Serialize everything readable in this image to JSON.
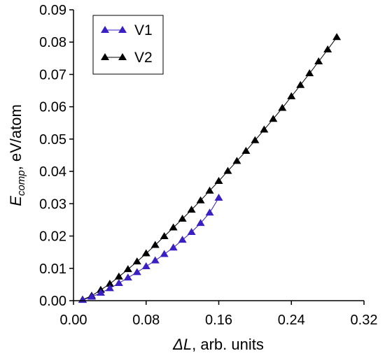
{
  "chart_data": {
    "type": "line",
    "xlabel": {
      "main": "ΔL",
      "rest": ", arb. units"
    },
    "ylabel": {
      "main": "E",
      "sub": "comp",
      "rest": ", eV/atom"
    },
    "xlim": [
      0,
      0.32
    ],
    "ylim": [
      0,
      0.09
    ],
    "xticks": [
      0.0,
      0.08,
      0.16,
      0.24,
      0.32
    ],
    "xtick_labels": [
      "0.00",
      "0.08",
      "0.16",
      "0.24",
      "0.32"
    ],
    "yticks": [
      0.0,
      0.01,
      0.02,
      0.03,
      0.04,
      0.05,
      0.06,
      0.07,
      0.08,
      0.09
    ],
    "ytick_labels": [
      "0.00",
      "0.01",
      "0.02",
      "0.03",
      "0.04",
      "0.05",
      "0.06",
      "0.07",
      "0.08",
      "0.09"
    ],
    "grid": false,
    "legend_position": "top-left",
    "series": [
      {
        "name": "V1",
        "color": "#3a1fc4",
        "marker": "triangle",
        "x": [
          0.01,
          0.02,
          0.03,
          0.04,
          0.05,
          0.06,
          0.07,
          0.08,
          0.09,
          0.1,
          0.11,
          0.12,
          0.13,
          0.14,
          0.15,
          0.16
        ],
        "y": [
          0.0002,
          0.0012,
          0.0024,
          0.0038,
          0.0054,
          0.0071,
          0.0088,
          0.0106,
          0.0124,
          0.0144,
          0.0164,
          0.0188,
          0.0212,
          0.024,
          0.0272,
          0.0318
        ]
      },
      {
        "name": "V2",
        "color": "#000000",
        "marker": "triangle",
        "x": [
          0.01,
          0.02,
          0.03,
          0.04,
          0.05,
          0.06,
          0.07,
          0.08,
          0.09,
          0.1,
          0.11,
          0.12,
          0.13,
          0.14,
          0.15,
          0.16,
          0.17,
          0.18,
          0.19,
          0.2,
          0.21,
          0.22,
          0.23,
          0.24,
          0.25,
          0.26,
          0.27,
          0.28,
          0.29
        ],
        "y": [
          0.0003,
          0.0015,
          0.0033,
          0.0052,
          0.0074,
          0.0097,
          0.0121,
          0.0146,
          0.0172,
          0.0199,
          0.0226,
          0.0253,
          0.0281,
          0.031,
          0.034,
          0.037,
          0.0401,
          0.0432,
          0.0463,
          0.0496,
          0.0529,
          0.0562,
          0.0596,
          0.0632,
          0.0667,
          0.0703,
          0.074,
          0.0777,
          0.0815
        ]
      }
    ]
  }
}
